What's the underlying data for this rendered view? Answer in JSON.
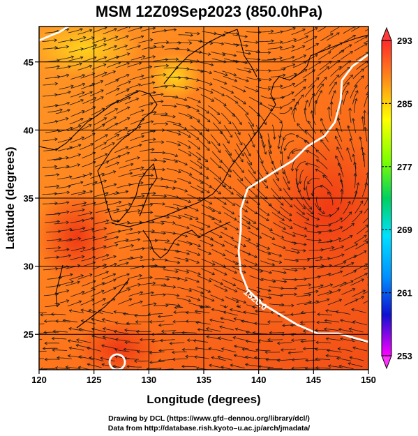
{
  "title": "MSM 12Z09Sep2023 (850.0hPa)",
  "xlabel": "Longitude (degrees)",
  "ylabel": "Latitude  (degrees)",
  "xticks": [
    "120",
    "125",
    "130",
    "135",
    "140",
    "145",
    "150"
  ],
  "yticks": [
    "25",
    "30",
    "35",
    "40",
    "45"
  ],
  "colorbar": {
    "labels": [
      "293",
      "285",
      "277",
      "269",
      "261",
      "253"
    ],
    "values": [
      293,
      285,
      277,
      269,
      261,
      253
    ],
    "min": 253,
    "max": 293
  },
  "contour_label": "1520.0",
  "credit_line1": "Drawing by DCL (https://www.gfd–dennou.org/library/dcl/)",
  "credit_line2": "Data from http://database.rish.kyoto–u.ac.jp/arch/jmadata/",
  "chart_data": {
    "type": "heatmap",
    "title": "MSM 12Z09Sep2023 (850.0hPa)",
    "xlabel": "Longitude (degrees)",
    "ylabel": "Latitude  (degrees)",
    "xlim": [
      120,
      150
    ],
    "ylim": [
      22.4,
      47.6
    ],
    "xticks": [
      120,
      125,
      130,
      135,
      140,
      145,
      150
    ],
    "yticks": [
      25,
      30,
      35,
      40,
      45
    ],
    "grid": true,
    "colorscale_range": [
      253,
      293
    ],
    "colorbar_ticks": [
      293,
      285,
      277,
      269,
      261,
      253
    ],
    "contour_labels": [
      "1520.0"
    ],
    "palette": [
      "#ff00ff",
      "#0000ff",
      "#00c8ff",
      "#00ff00",
      "#ffff00",
      "#ff0000"
    ]
  }
}
